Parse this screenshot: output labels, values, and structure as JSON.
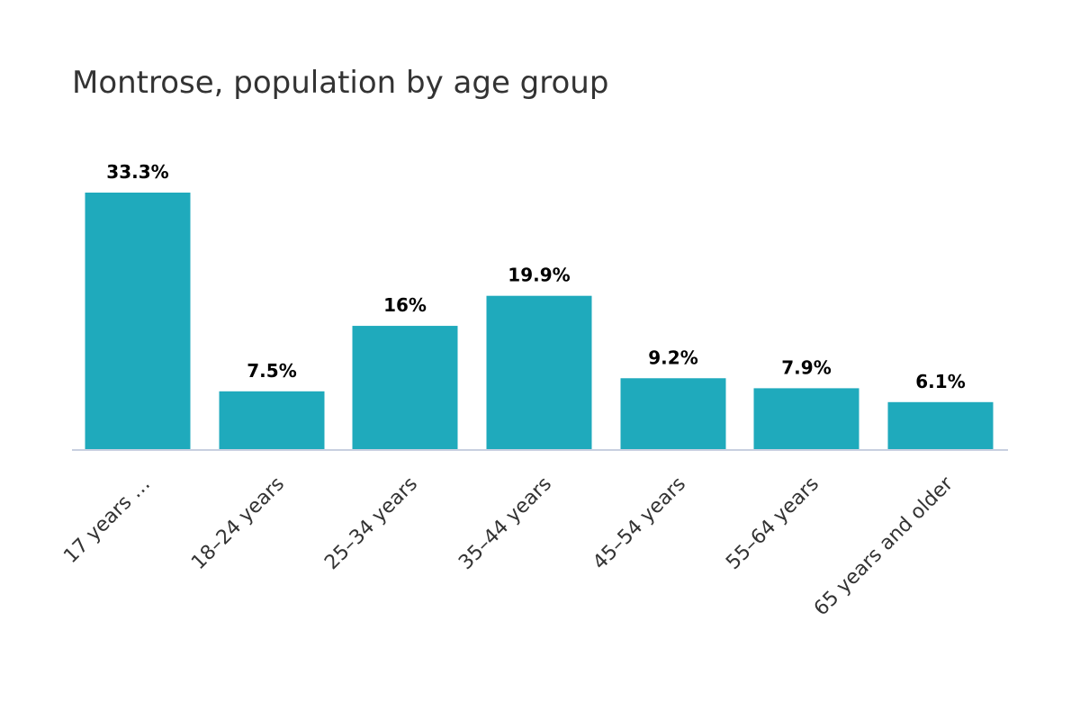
{
  "chart_data": {
    "type": "bar",
    "title": "Montrose, population by age group",
    "categories": [
      "17 years …",
      "18–24 years",
      "25–34 years",
      "35–44 years",
      "45–54 years",
      "55–64 years",
      "65 years and older"
    ],
    "values": [
      33.3,
      7.5,
      16,
      19.9,
      9.2,
      7.9,
      6.1
    ],
    "data_labels": [
      "33.3%",
      "7.5%",
      "16%",
      "19.9%",
      "9.2%",
      "7.9%",
      "6.1%"
    ],
    "ylim": [
      0,
      33.3
    ],
    "grid": false,
    "legend": "none",
    "colors": {
      "bar": "#1FAABC",
      "axis": "#C8CFE0",
      "title": "#333333",
      "tick_text": "#333333",
      "label_text": "#000000"
    }
  }
}
